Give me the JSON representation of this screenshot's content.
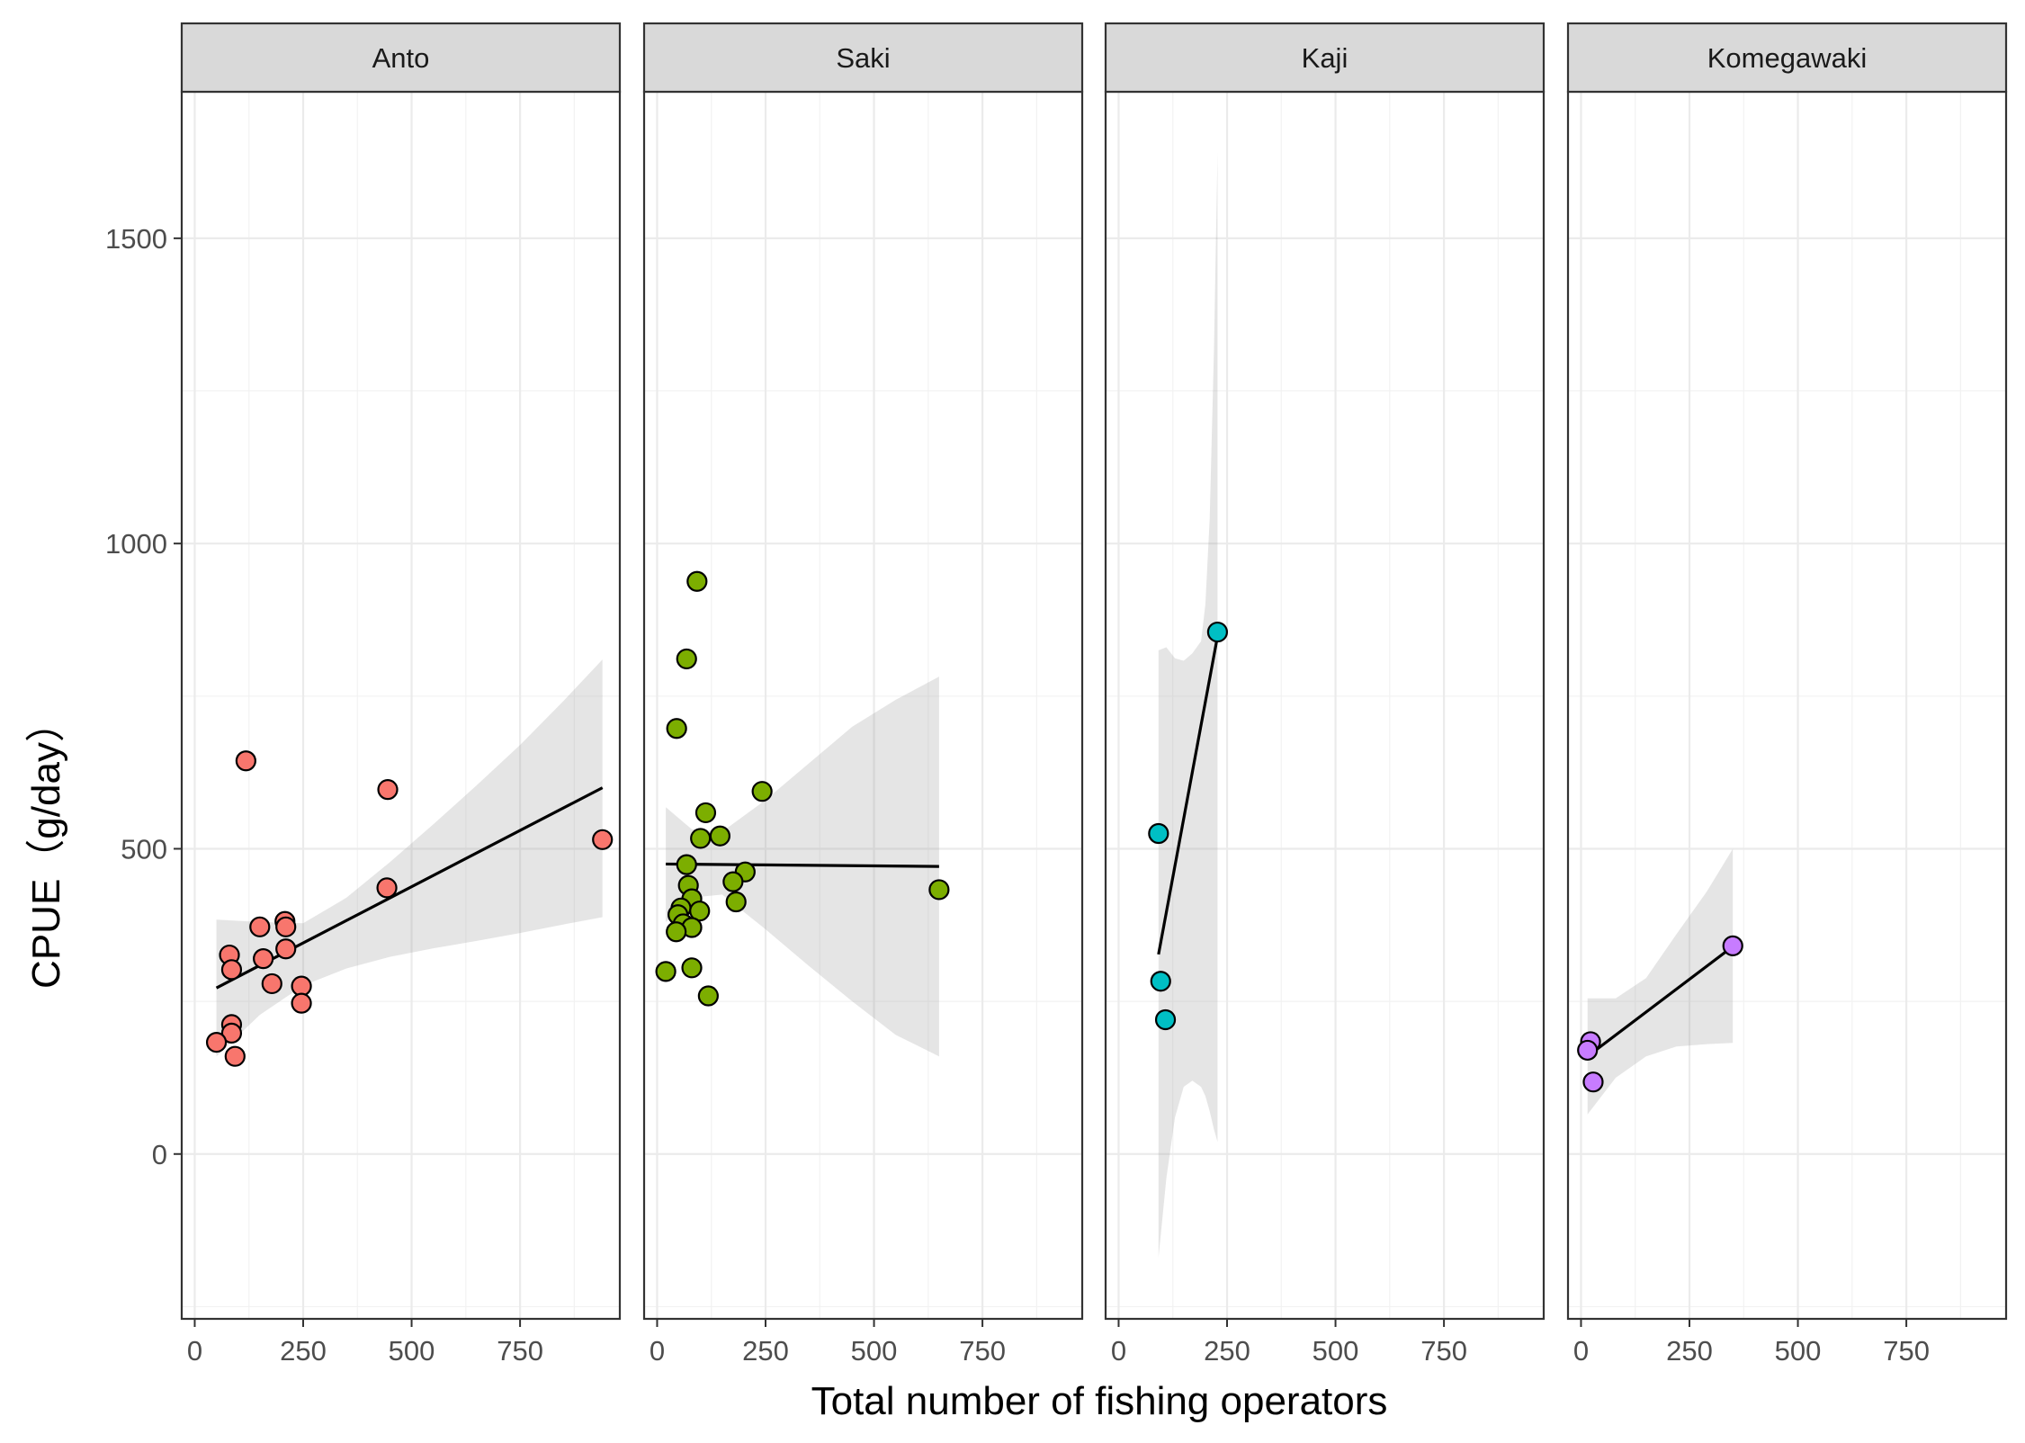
{
  "chart_data": {
    "type": "scatter",
    "xlabel": "Total number of fishing operators",
    "ylabel": "CPUE（g/day）",
    "xlim": [
      -30,
      980
    ],
    "ylim": [
      -270,
      1740
    ],
    "x_ticks": [
      0,
      250,
      500,
      750
    ],
    "x_tick_labels": [
      "0",
      "250",
      "500",
      "750"
    ],
    "y_ticks": [
      0,
      500,
      1000,
      1500
    ],
    "y_tick_labels": [
      "0",
      "500",
      "1000",
      "1500"
    ],
    "grid": true,
    "legend": "none",
    "panels": [
      {
        "name": "Anto",
        "color": "#F8766D",
        "points": [
          {
            "x": 118,
            "y": 644
          },
          {
            "x": 445,
            "y": 597
          },
          {
            "x": 940,
            "y": 515
          },
          {
            "x": 443,
            "y": 436
          },
          {
            "x": 208,
            "y": 381
          },
          {
            "x": 210,
            "y": 372
          },
          {
            "x": 150,
            "y": 372
          },
          {
            "x": 210,
            "y": 336
          },
          {
            "x": 80,
            "y": 326
          },
          {
            "x": 158,
            "y": 320
          },
          {
            "x": 85,
            "y": 302
          },
          {
            "x": 178,
            "y": 279
          },
          {
            "x": 246,
            "y": 275
          },
          {
            "x": 246,
            "y": 247
          },
          {
            "x": 85,
            "y": 212
          },
          {
            "x": 85,
            "y": 198
          },
          {
            "x": 50,
            "y": 183
          },
          {
            "x": 93,
            "y": 160
          }
        ],
        "fit": {
          "x": [
            50,
            940
          ],
          "y": [
            272,
            600
          ]
        },
        "ribbon": {
          "x": [
            50,
            150,
            250,
            350,
            450,
            550,
            650,
            750,
            850,
            940
          ],
          "lower": [
            160,
            228,
            276,
            304,
            323,
            337,
            349,
            362,
            376,
            388
          ],
          "upper": [
            384,
            380,
            378,
            420,
            478,
            540,
            604,
            670,
            742,
            810
          ]
        }
      },
      {
        "name": "Saki",
        "color": "#7CAE00",
        "points": [
          {
            "x": 92,
            "y": 938
          },
          {
            "x": 68,
            "y": 811
          },
          {
            "x": 45,
            "y": 697
          },
          {
            "x": 242,
            "y": 594
          },
          {
            "x": 112,
            "y": 559
          },
          {
            "x": 145,
            "y": 521
          },
          {
            "x": 100,
            "y": 517
          },
          {
            "x": 68,
            "y": 474
          },
          {
            "x": 203,
            "y": 462
          },
          {
            "x": 175,
            "y": 446
          },
          {
            "x": 650,
            "y": 433
          },
          {
            "x": 72,
            "y": 440
          },
          {
            "x": 80,
            "y": 418
          },
          {
            "x": 182,
            "y": 413
          },
          {
            "x": 55,
            "y": 403
          },
          {
            "x": 98,
            "y": 398
          },
          {
            "x": 48,
            "y": 392
          },
          {
            "x": 60,
            "y": 377
          },
          {
            "x": 80,
            "y": 371
          },
          {
            "x": 44,
            "y": 364
          },
          {
            "x": 20,
            "y": 299
          },
          {
            "x": 80,
            "y": 305
          },
          {
            "x": 118,
            "y": 259
          }
        ],
        "fit": {
          "x": [
            20,
            650
          ],
          "y": [
            475,
            471
          ]
        },
        "ribbon": {
          "x": [
            20,
            80,
            150,
            250,
            350,
            450,
            550,
            650
          ],
          "lower": [
            380,
            420,
            425,
            368,
            308,
            250,
            195,
            160
          ],
          "upper": [
            568,
            532,
            528,
            580,
            640,
            700,
            744,
            782
          ]
        }
      },
      {
        "name": "Kaji",
        "color": "#00BFC4",
        "points": [
          {
            "x": 228,
            "y": 855
          },
          {
            "x": 92,
            "y": 525
          },
          {
            "x": 97,
            "y": 283
          },
          {
            "x": 108,
            "y": 220
          }
        ],
        "fit": {
          "x": [
            92,
            228
          ],
          "y": [
            327,
            848
          ]
        },
        "ribbon": {
          "x": [
            92,
            110,
            130,
            150,
            170,
            190,
            200,
            210,
            220,
            228
          ],
          "lower": [
            -170,
            -40,
            60,
            110,
            120,
            110,
            95,
            70,
            40,
            20
          ],
          "upper": [
            825,
            830,
            812,
            808,
            820,
            840,
            900,
            1040,
            1320,
            1640
          ]
        }
      },
      {
        "name": "Komegawaki",
        "color": "#C77CFF",
        "points": [
          {
            "x": 350,
            "y": 341
          },
          {
            "x": 22,
            "y": 184
          },
          {
            "x": 15,
            "y": 170
          },
          {
            "x": 28,
            "y": 118
          }
        ],
        "fit": {
          "x": [
            15,
            350
          ],
          "y": [
            160,
            340
          ]
        },
        "ribbon": {
          "x": [
            15,
            80,
            150,
            220,
            290,
            350
          ],
          "lower": [
            65,
            125,
            160,
            176,
            180,
            182
          ],
          "upper": [
            255,
            255,
            288,
            360,
            430,
            500
          ]
        }
      }
    ]
  }
}
